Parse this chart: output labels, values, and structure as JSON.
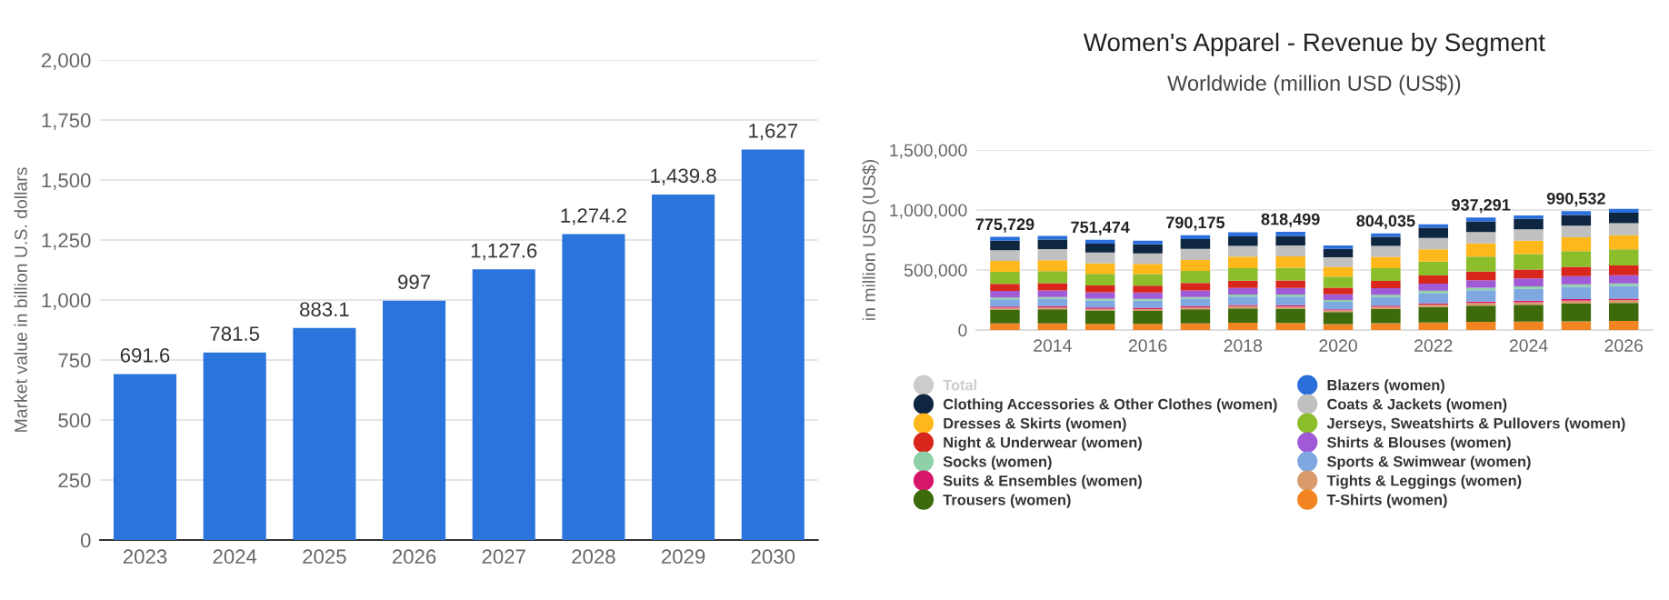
{
  "chart_data": [
    {
      "type": "bar",
      "ylabel": "Market value in billion U.S. dollars",
      "categories": [
        "2023",
        "2024",
        "2025",
        "2026",
        "2027",
        "2028",
        "2029",
        "2030"
      ],
      "values": [
        691.6,
        781.5,
        883.1,
        997,
        1127.6,
        1274.2,
        1439.8,
        1627
      ],
      "value_labels": [
        "691.6",
        "781.5",
        "883.1",
        "997",
        "1,127.6",
        "1,274.2",
        "1,439.8",
        "1,627"
      ],
      "color": "#2a74db",
      "ylim": [
        0,
        2000
      ],
      "yticks": [
        0,
        250,
        500,
        750,
        {
          "value": 1000,
          "label": "1,000"
        },
        {
          "value": 1250,
          "label": "1,250"
        },
        {
          "value": 1500,
          "label": "1,500"
        },
        {
          "value": 1750,
          "label": "1,750"
        },
        {
          "value": 2000,
          "label": "2,000"
        }
      ],
      "grid": "y",
      "legend": false
    },
    {
      "type": "bar",
      "title": "Women's Apparel - Revenue by Segment",
      "subtitle": "Worldwide (million USD (US$))",
      "ylabel": "in million USD (US$)",
      "x": [
        2013,
        2014,
        2015,
        2016,
        2017,
        2018,
        2019,
        2020,
        2021,
        2022,
        2023,
        2024,
        2025,
        2026
      ],
      "xlim": [
        2012.4,
        2026.6
      ],
      "xticks": [
        2014,
        2016,
        2018,
        2020,
        2022,
        2024,
        2026
      ],
      "ylim": [
        0,
        1500000
      ],
      "yticks": [
        0,
        {
          "value": 500000,
          "label": "500,000"
        },
        {
          "value": 1000000,
          "label": "1,000,000"
        },
        {
          "value": 1500000,
          "label": "1,500,000"
        }
      ],
      "stacked": true,
      "grid": "y",
      "legend": "bottom",
      "totals": [
        "775,729",
        null,
        "751,474",
        null,
        "790,175",
        null,
        "818,499",
        null,
        "804,035",
        null,
        "937,291",
        null,
        "990,532",
        null
      ],
      "series": [
        {
          "name": "T-Shirts (women)",
          "color": "#f28522",
          "values": [
            55000,
            55000,
            52000,
            52000,
            55000,
            60000,
            58000,
            50000,
            57000,
            62000,
            68000,
            70000,
            72000,
            75000
          ]
        },
        {
          "name": "Trousers (women)",
          "color": "#3d6b0c",
          "values": [
            115000,
            118000,
            110000,
            108000,
            118000,
            120000,
            120000,
            100000,
            118000,
            130000,
            135000,
            140000,
            148000,
            150000
          ]
        },
        {
          "name": "Tights & Leggings (women)",
          "color": "#d99a6c",
          "values": [
            15000,
            15000,
            15000,
            15000,
            15000,
            18000,
            18000,
            15000,
            18000,
            20000,
            22000,
            22000,
            25000,
            25000
          ]
        },
        {
          "name": "Suits & Ensembles (women)",
          "color": "#d6156b",
          "values": [
            10000,
            10000,
            10000,
            10000,
            10000,
            10000,
            10000,
            8000,
            10000,
            10000,
            12000,
            12000,
            12000,
            12000
          ]
        },
        {
          "name": "Sports & Swimwear (women)",
          "color": "#7fa7e0",
          "values": [
            60000,
            62000,
            60000,
            60000,
            62000,
            70000,
            72000,
            62000,
            72000,
            85000,
            95000,
            98000,
            102000,
            105000
          ]
        },
        {
          "name": "Socks (women)",
          "color": "#8ed1a8",
          "values": [
            15000,
            15000,
            15000,
            15000,
            15000,
            18000,
            18000,
            15000,
            18000,
            20000,
            20000,
            22000,
            22000,
            22000
          ]
        },
        {
          "name": "Shirts & Blouses (women)",
          "color": "#a05ad6",
          "values": [
            55000,
            55000,
            52000,
            52000,
            55000,
            55000,
            55000,
            48000,
            55000,
            60000,
            63000,
            65000,
            67000,
            68000
          ]
        },
        {
          "name": "Night & Underwear (women)",
          "color": "#d9261c",
          "values": [
            60000,
            60000,
            58000,
            58000,
            62000,
            60000,
            62000,
            55000,
            62000,
            68000,
            72000,
            75000,
            78000,
            80000
          ]
        },
        {
          "name": "Jerseys, Sweatshirts & Pullovers (women)",
          "color": "#8cbd2b",
          "values": [
            100000,
            100000,
            95000,
            95000,
            100000,
            105000,
            105000,
            92000,
            105000,
            115000,
            125000,
            128000,
            132000,
            135000
          ]
        },
        {
          "name": "Dresses & Skirts (women)",
          "color": "#ffb81c",
          "values": [
            90000,
            92000,
            88000,
            86000,
            92000,
            95000,
            95000,
            82000,
            95000,
            102000,
            110000,
            112000,
            115000,
            118000
          ]
        },
        {
          "name": "Coats & Jackets (women)",
          "color": "#c0c0c0",
          "values": [
            90000,
            92000,
            90000,
            88000,
            92000,
            90000,
            92000,
            80000,
            90000,
            95000,
            95000,
            95000,
            97000,
            100000
          ]
        },
        {
          "name": "Clothing Accessories & Other Clothes (women)",
          "color": "#0f2640",
          "values": [
            80000,
            80000,
            75000,
            75000,
            82000,
            80000,
            80000,
            70000,
            76000,
            85000,
            88000,
            88000,
            88000,
            88000
          ]
        },
        {
          "name": "Blazers (women)",
          "color": "#2a6fdb",
          "values": [
            30729,
            31000,
            31474,
            31000,
            32175,
            34000,
            33499,
            28000,
            28035,
            28000,
            32291,
            28000,
            32532,
            32000
          ]
        },
        {
          "name": "Total",
          "color": "#cccccc",
          "values": [
            null,
            null,
            null,
            null,
            null,
            null,
            null,
            null,
            null,
            null,
            null,
            null,
            null,
            null
          ]
        }
      ]
    }
  ]
}
